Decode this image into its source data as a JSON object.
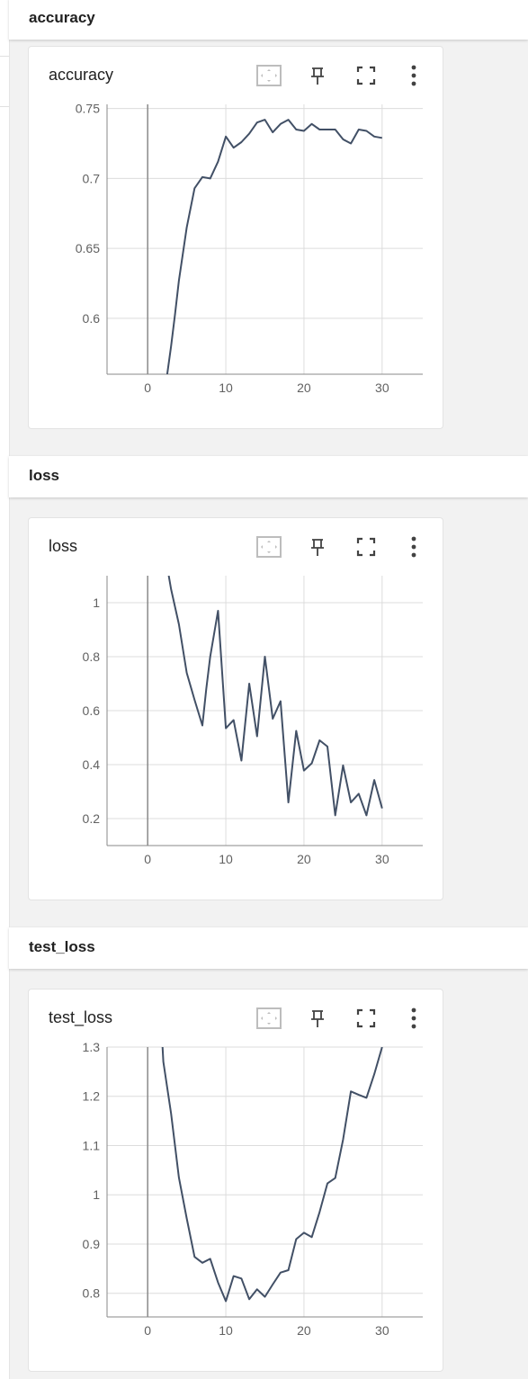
{
  "sections": [
    {
      "header": "accuracy",
      "card_title": "accuracy"
    },
    {
      "header": "loss",
      "card_title": "loss"
    },
    {
      "header": "test_loss",
      "card_title": "test_loss"
    }
  ],
  "toolbar": {
    "icons": [
      "fit-domain-icon",
      "pin-icon",
      "fullscreen-icon",
      "more-vert-icon"
    ]
  },
  "colors": {
    "series": "#425066",
    "grid": "#dcdcdc",
    "axis": "#8a8a8a"
  },
  "chart_data": [
    {
      "type": "line",
      "title": "accuracy",
      "xlim": [
        -5.2,
        35.2
      ],
      "ylim": [
        0.56,
        0.753
      ],
      "xticks": [
        0,
        10,
        20,
        30
      ],
      "xtick_labels": [
        "0",
        "10",
        "20",
        "30"
      ],
      "yticks": [
        0.6,
        0.65,
        0.7,
        0.75
      ],
      "ytick_labels": [
        "0.6",
        "0.65",
        "0.7",
        "0.75"
      ],
      "x": [
        2.5,
        3,
        3.5,
        4,
        5,
        6,
        7,
        8,
        9,
        10,
        11,
        12,
        13,
        14,
        15,
        16,
        17,
        18,
        19,
        20,
        21,
        22,
        23,
        24,
        25,
        26,
        27,
        28,
        29,
        30
      ],
      "y": [
        0.56,
        0.58,
        0.603,
        0.627,
        0.665,
        0.693,
        0.701,
        0.7,
        0.712,
        0.73,
        0.722,
        0.726,
        0.732,
        0.74,
        0.742,
        0.733,
        0.739,
        0.742,
        0.735,
        0.734,
        0.739,
        0.735,
        0.735,
        0.735,
        0.728,
        0.725,
        0.735,
        0.734,
        0.73,
        0.729
      ]
    },
    {
      "type": "line",
      "title": "loss",
      "xlim": [
        -5.2,
        35.2
      ],
      "ylim": [
        0.1,
        1.1
      ],
      "xticks": [
        0,
        10,
        20,
        30
      ],
      "xtick_labels": [
        "0",
        "10",
        "20",
        "30"
      ],
      "yticks": [
        0.2,
        0.4,
        0.6,
        0.8,
        1
      ],
      "ytick_labels": [
        "0.2",
        "0.4",
        "0.6",
        "0.8",
        "1"
      ],
      "x": [
        2.7,
        3,
        4,
        5,
        6,
        7,
        7.5,
        8,
        9,
        10,
        11,
        12,
        13,
        14,
        15,
        16,
        17,
        18,
        19,
        20,
        21,
        22,
        23,
        24,
        25,
        26,
        27,
        28,
        29,
        30
      ],
      "y": [
        1.1,
        1.05,
        0.92,
        0.74,
        0.64,
        0.545,
        0.68,
        0.8,
        0.97,
        0.535,
        0.565,
        0.415,
        0.7,
        0.505,
        0.8,
        0.57,
        0.635,
        0.26,
        0.525,
        0.378,
        0.405,
        0.49,
        0.467,
        0.212,
        0.397,
        0.26,
        0.292,
        0.212,
        0.343,
        0.238
      ]
    },
    {
      "type": "line",
      "title": "test_loss",
      "xlim": [
        -5.2,
        35.2
      ],
      "ylim": [
        0.752,
        1.3
      ],
      "xticks": [
        0,
        10,
        20,
        30
      ],
      "xtick_labels": [
        "0",
        "10",
        "20",
        "30"
      ],
      "yticks": [
        0.8,
        0.9,
        1,
        1.1,
        1.2,
        1.3
      ],
      "ytick_labels": [
        "0.8",
        "0.9",
        "1",
        "1.1",
        "1.2",
        "1.3"
      ],
      "x": [
        1.9,
        2,
        3,
        4,
        5,
        6,
        7,
        8,
        9,
        10,
        11,
        12,
        13,
        14,
        15,
        16,
        17,
        18,
        19,
        20,
        21,
        22,
        23,
        24,
        25,
        26,
        27,
        28,
        29,
        30
      ],
      "y": [
        1.3,
        1.27,
        1.165,
        1.035,
        0.952,
        0.874,
        0.862,
        0.87,
        0.822,
        0.784,
        0.835,
        0.83,
        0.788,
        0.808,
        0.793,
        0.818,
        0.842,
        0.847,
        0.91,
        0.923,
        0.914,
        0.965,
        1.023,
        1.034,
        1.112,
        1.21,
        1.203,
        1.197,
        1.245,
        1.3
      ]
    }
  ]
}
